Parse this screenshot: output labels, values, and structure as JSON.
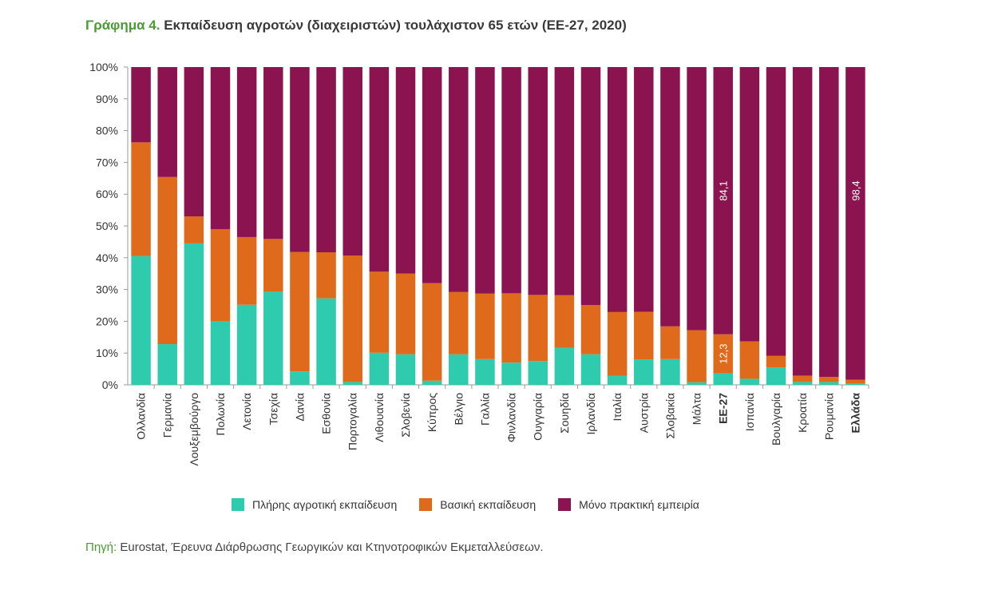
{
  "title": {
    "lead": "Γράφημα 4.",
    "text": "Εκπαίδευση αγροτών (διαχειριστών) τουλάχιστον 65 ετών (ΕΕ-27, 2020)"
  },
  "source": {
    "lead": "Πηγή:",
    "text": "Eurostat, Έρευνα Διάρθρωσης Γεωργικών και Κτηνοτροφικών Εκμεταλλεύσεων."
  },
  "colors": {
    "full": "#2ecbae",
    "basic": "#e06a1b",
    "practical": "#8b1450",
    "accent": "#4a9a35"
  },
  "chart_data": {
    "type": "bar",
    "stacked": true,
    "categories": [
      "Ολλανδία",
      "Γερμανία",
      "Λουξεμβούργο",
      "Πολωνία",
      "Λετονία",
      "Τσεχία",
      "Δανία",
      "Εσθονία",
      "Πορτογαλία",
      "Λιθουανία",
      "Σλοβενία",
      "Κύπρος",
      "Βέλγιο",
      "Γαλλία",
      "Φινλανδία",
      "Ουγγαρία",
      "Σουηδία",
      "Ιρλανδία",
      "Ιταλία",
      "Αυστρία",
      "Σλοβακία",
      "Μάλτα",
      "ΕΕ-27",
      "Ισπανία",
      "Βουλγαρία",
      "Κροατία",
      "Ρουμανία",
      "Ελλάδα"
    ],
    "bold_categories": [
      "ΕΕ-27",
      "Ελλάδα"
    ],
    "series": [
      {
        "name": "Πλήρης αγροτική εκπαίδευση",
        "color_key": "full",
        "values": [
          40.5,
          12.8,
          44.5,
          20.0,
          25.2,
          29.3,
          4.2,
          27.2,
          0.9,
          10.1,
          9.6,
          1.3,
          9.6,
          8.1,
          7.0,
          7.5,
          11.6,
          9.6,
          2.8,
          8.0,
          8.1,
          0.8,
          3.6,
          1.9,
          5.5,
          0.9,
          0.9,
          0.5
        ]
      },
      {
        "name": "Βασική εκπαίδευση",
        "color_key": "basic",
        "values": [
          35.8,
          52.6,
          8.5,
          29.0,
          21.3,
          16.6,
          37.6,
          14.5,
          39.8,
          25.5,
          25.4,
          30.7,
          19.6,
          20.6,
          21.8,
          20.8,
          16.6,
          15.5,
          20.1,
          15.0,
          10.3,
          16.4,
          12.3,
          11.8,
          3.6,
          2.0,
          1.6,
          1.1
        ]
      },
      {
        "name": "Μόνο πρακτική εμπειρία",
        "color_key": "practical",
        "values": [
          23.7,
          34.6,
          47.0,
          51.0,
          53.5,
          54.1,
          58.2,
          58.3,
          59.3,
          64.4,
          65.0,
          68.0,
          70.8,
          71.3,
          71.2,
          71.7,
          71.8,
          74.9,
          77.1,
          77.0,
          81.6,
          82.8,
          84.1,
          86.3,
          90.9,
          97.1,
          97.5,
          98.4
        ]
      }
    ],
    "data_labels": [
      {
        "category": "ΕΕ-27",
        "series": "Βασική εκπαίδευση",
        "text": "12,3"
      },
      {
        "category": "ΕΕ-27",
        "series": "Μόνο πρακτική εμπειρία",
        "text": "84,1"
      },
      {
        "category": "Ελλάδα",
        "series": "Μόνο πρακτική εμπειρία",
        "text": "98,4"
      }
    ],
    "ylim": [
      0,
      100
    ],
    "yticks": [
      "0%",
      "10%",
      "20%",
      "30%",
      "40%",
      "50%",
      "60%",
      "70%",
      "80%",
      "90%",
      "100%"
    ],
    "legend_position": "bottom"
  }
}
